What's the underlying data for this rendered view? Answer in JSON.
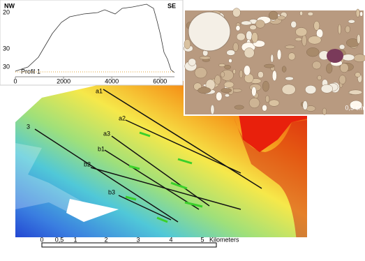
{
  "profile": {
    "left_label": "NW",
    "right_label": "SE",
    "name": "Profil 1",
    "xlim": [
      0,
      6600
    ],
    "xticks": [
      0,
      2000,
      4000,
      6000
    ],
    "ytick_labels": [
      "20",
      "30",
      "30"
    ]
  },
  "photo": {
    "scale_label": "0,5 cm"
  },
  "map": {
    "lines": [
      "a1",
      "a2",
      "a3",
      "b1",
      "b2",
      "3",
      "b3"
    ],
    "scale_labels": [
      "0",
      "0,5",
      "1",
      "2",
      "3",
      "4",
      "5",
      "Kilometers"
    ]
  }
}
